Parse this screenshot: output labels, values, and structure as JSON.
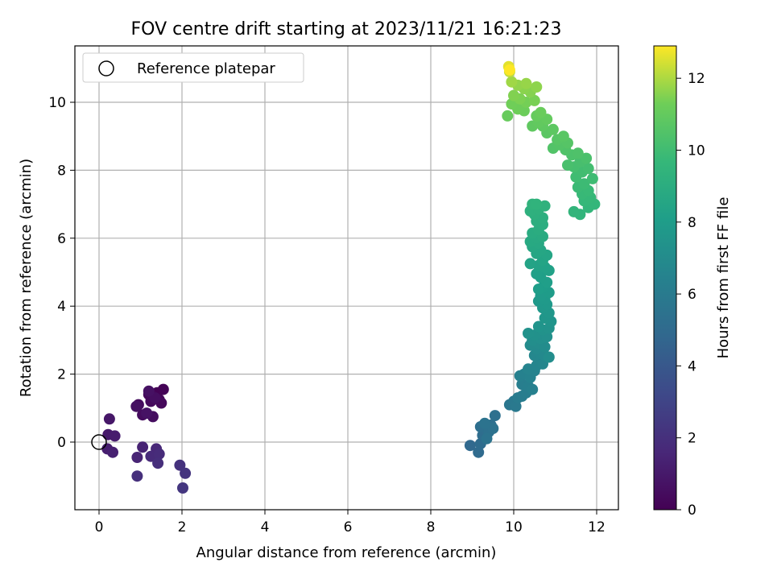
{
  "chart_data": {
    "type": "scatter",
    "title": "FOV centre drift starting at 2023/11/21 16:21:23",
    "xlabel": "Angular distance from reference (arcmin)",
    "ylabel": "Rotation from reference (arcmin)",
    "xlim": [
      -0.6,
      12.5
    ],
    "ylim": [
      -2.0,
      11.7
    ],
    "xticks": [
      "0",
      "2",
      "4",
      "6",
      "8",
      "10",
      "12"
    ],
    "yticks": [
      "0",
      "2",
      "4",
      "6",
      "8",
      "10"
    ],
    "grid": true,
    "legend": {
      "position": "top-left",
      "entries": [
        "Reference platepar"
      ]
    },
    "reference_point": {
      "x": 0,
      "y": 0
    },
    "colorbar": {
      "label": "Hours from first FF file",
      "range": [
        0,
        12.9
      ],
      "ticks": [
        "0",
        "2",
        "4",
        "6",
        "8",
        "10",
        "12"
      ],
      "colormap": "viridis"
    },
    "points": [
      {
        "x": 1.4,
        "y": 1.45,
        "c": 0.05
      },
      {
        "x": 1.55,
        "y": 1.55,
        "c": 0.1
      },
      {
        "x": 1.45,
        "y": 1.25,
        "c": 0.15
      },
      {
        "x": 1.3,
        "y": 1.35,
        "c": 0.2
      },
      {
        "x": 1.2,
        "y": 1.4,
        "c": 0.25
      },
      {
        "x": 1.5,
        "y": 1.15,
        "c": 0.3
      },
      {
        "x": 1.25,
        "y": 1.2,
        "c": 0.35
      },
      {
        "x": 0.95,
        "y": 1.1,
        "c": 0.4
      },
      {
        "x": 1.05,
        "y": 0.8,
        "c": 0.45
      },
      {
        "x": 1.3,
        "y": 0.75,
        "c": 0.5
      },
      {
        "x": 1.35,
        "y": 1.3,
        "c": 0.55
      },
      {
        "x": 0.9,
        "y": 1.05,
        "c": 0.6
      },
      {
        "x": 1.2,
        "y": 1.5,
        "c": 0.65
      },
      {
        "x": 1.15,
        "y": 0.85,
        "c": 0.7
      },
      {
        "x": 0.25,
        "y": 0.68,
        "c": 0.9
      },
      {
        "x": 0.22,
        "y": 0.22,
        "c": 1.0
      },
      {
        "x": 0.38,
        "y": 0.18,
        "c": 1.1
      },
      {
        "x": 0.2,
        "y": -0.2,
        "c": 1.2
      },
      {
        "x": 0.33,
        "y": -0.3,
        "c": 1.3
      },
      {
        "x": 1.05,
        "y": -0.15,
        "c": 1.4
      },
      {
        "x": 0.92,
        "y": -0.45,
        "c": 1.5
      },
      {
        "x": 1.38,
        "y": -0.2,
        "c": 1.6
      },
      {
        "x": 1.25,
        "y": -0.42,
        "c": 1.7
      },
      {
        "x": 1.45,
        "y": -0.35,
        "c": 1.8
      },
      {
        "x": 1.42,
        "y": -0.62,
        "c": 1.9
      },
      {
        "x": 0.92,
        "y": -1.0,
        "c": 2.0
      },
      {
        "x": 1.95,
        "y": -0.68,
        "c": 2.1
      },
      {
        "x": 2.08,
        "y": -0.92,
        "c": 2.2
      },
      {
        "x": 2.02,
        "y": -1.35,
        "c": 2.3
      },
      {
        "x": 8.95,
        "y": -0.1,
        "c": 4.9
      },
      {
        "x": 9.15,
        "y": -0.3,
        "c": 5.0
      },
      {
        "x": 9.2,
        "y": -0.05,
        "c": 5.1
      },
      {
        "x": 9.25,
        "y": 0.2,
        "c": 5.15
      },
      {
        "x": 9.35,
        "y": 0.35,
        "c": 5.2
      },
      {
        "x": 9.2,
        "y": 0.45,
        "c": 5.25
      },
      {
        "x": 9.45,
        "y": 0.5,
        "c": 5.3
      },
      {
        "x": 9.55,
        "y": 0.78,
        "c": 5.35
      },
      {
        "x": 9.4,
        "y": 0.3,
        "c": 5.4
      },
      {
        "x": 9.5,
        "y": 0.4,
        "c": 5.45
      },
      {
        "x": 9.3,
        "y": 0.55,
        "c": 5.5
      },
      {
        "x": 9.35,
        "y": 0.1,
        "c": 5.55
      },
      {
        "x": 9.9,
        "y": 1.1,
        "c": 5.7
      },
      {
        "x": 10.0,
        "y": 1.2,
        "c": 5.8
      },
      {
        "x": 10.05,
        "y": 1.05,
        "c": 5.9
      },
      {
        "x": 10.1,
        "y": 1.3,
        "c": 6.0
      },
      {
        "x": 10.2,
        "y": 1.35,
        "c": 6.1
      },
      {
        "x": 10.3,
        "y": 1.45,
        "c": 6.15
      },
      {
        "x": 10.2,
        "y": 1.7,
        "c": 6.2
      },
      {
        "x": 10.35,
        "y": 1.65,
        "c": 6.25
      },
      {
        "x": 10.45,
        "y": 1.55,
        "c": 6.3
      },
      {
        "x": 10.15,
        "y": 1.95,
        "c": 6.35
      },
      {
        "x": 10.25,
        "y": 2.0,
        "c": 6.4
      },
      {
        "x": 10.4,
        "y": 1.9,
        "c": 6.45
      },
      {
        "x": 10.5,
        "y": 2.1,
        "c": 6.5
      },
      {
        "x": 10.35,
        "y": 2.15,
        "c": 6.55
      },
      {
        "x": 10.55,
        "y": 2.25,
        "c": 6.6
      },
      {
        "x": 10.6,
        "y": 2.4,
        "c": 6.65
      },
      {
        "x": 10.7,
        "y": 2.3,
        "c": 6.7
      },
      {
        "x": 10.5,
        "y": 2.55,
        "c": 6.75
      },
      {
        "x": 10.65,
        "y": 2.6,
        "c": 6.8
      },
      {
        "x": 10.75,
        "y": 2.55,
        "c": 6.85
      },
      {
        "x": 10.55,
        "y": 2.75,
        "c": 6.9
      },
      {
        "x": 10.4,
        "y": 2.85,
        "c": 6.95
      },
      {
        "x": 10.6,
        "y": 2.9,
        "c": 7.0
      },
      {
        "x": 10.75,
        "y": 2.8,
        "c": 7.05
      },
      {
        "x": 10.85,
        "y": 2.5,
        "c": 7.1
      },
      {
        "x": 10.45,
        "y": 3.0,
        "c": 7.15
      },
      {
        "x": 10.65,
        "y": 3.05,
        "c": 7.2
      },
      {
        "x": 10.8,
        "y": 3.1,
        "c": 7.25
      },
      {
        "x": 10.5,
        "y": 3.15,
        "c": 7.3
      },
      {
        "x": 10.35,
        "y": 3.2,
        "c": 7.35
      },
      {
        "x": 10.7,
        "y": 3.3,
        "c": 7.4
      },
      {
        "x": 10.85,
        "y": 3.35,
        "c": 7.45
      },
      {
        "x": 10.6,
        "y": 3.4,
        "c": 7.5
      },
      {
        "x": 10.9,
        "y": 3.55,
        "c": 7.55
      },
      {
        "x": 10.75,
        "y": 3.65,
        "c": 7.6
      },
      {
        "x": 10.85,
        "y": 3.8,
        "c": 7.65
      },
      {
        "x": 10.7,
        "y": 3.95,
        "c": 7.7
      },
      {
        "x": 10.8,
        "y": 4.05,
        "c": 7.75
      },
      {
        "x": 10.6,
        "y": 4.15,
        "c": 7.8
      },
      {
        "x": 10.75,
        "y": 4.2,
        "c": 7.85
      },
      {
        "x": 10.65,
        "y": 4.3,
        "c": 7.9
      },
      {
        "x": 10.85,
        "y": 4.4,
        "c": 7.95
      },
      {
        "x": 10.7,
        "y": 4.55,
        "c": 8.0
      },
      {
        "x": 10.6,
        "y": 4.5,
        "c": 8.05
      },
      {
        "x": 10.8,
        "y": 4.7,
        "c": 8.1
      },
      {
        "x": 10.65,
        "y": 4.85,
        "c": 8.15
      },
      {
        "x": 10.55,
        "y": 4.95,
        "c": 8.2
      },
      {
        "x": 10.85,
        "y": 5.05,
        "c": 8.25
      },
      {
        "x": 10.75,
        "y": 5.15,
        "c": 8.3
      },
      {
        "x": 10.6,
        "y": 5.2,
        "c": 8.35
      },
      {
        "x": 10.4,
        "y": 5.25,
        "c": 8.4
      },
      {
        "x": 10.7,
        "y": 5.35,
        "c": 8.45
      },
      {
        "x": 10.8,
        "y": 5.5,
        "c": 8.5
      },
      {
        "x": 10.55,
        "y": 5.55,
        "c": 8.55
      },
      {
        "x": 10.65,
        "y": 5.65,
        "c": 8.6
      },
      {
        "x": 10.45,
        "y": 5.75,
        "c": 8.65
      },
      {
        "x": 10.6,
        "y": 5.85,
        "c": 8.7
      },
      {
        "x": 10.4,
        "y": 5.9,
        "c": 8.75
      },
      {
        "x": 10.55,
        "y": 6.0,
        "c": 8.8
      },
      {
        "x": 10.7,
        "y": 6.05,
        "c": 8.85
      },
      {
        "x": 10.45,
        "y": 6.15,
        "c": 8.9
      },
      {
        "x": 10.6,
        "y": 6.25,
        "c": 8.95
      },
      {
        "x": 10.7,
        "y": 6.4,
        "c": 9.0
      },
      {
        "x": 10.55,
        "y": 6.5,
        "c": 9.05
      },
      {
        "x": 10.7,
        "y": 6.6,
        "c": 9.1
      },
      {
        "x": 10.5,
        "y": 6.7,
        "c": 9.15
      },
      {
        "x": 10.4,
        "y": 6.8,
        "c": 9.2
      },
      {
        "x": 10.6,
        "y": 6.85,
        "c": 9.25
      },
      {
        "x": 10.75,
        "y": 6.95,
        "c": 9.3
      },
      {
        "x": 10.45,
        "y": 7.0,
        "c": 9.35
      },
      {
        "x": 10.55,
        "y": 7.0,
        "c": 9.4
      },
      {
        "x": 11.6,
        "y": 6.7,
        "c": 9.45
      },
      {
        "x": 11.45,
        "y": 6.78,
        "c": 9.5
      },
      {
        "x": 11.8,
        "y": 6.9,
        "c": 9.55
      },
      {
        "x": 11.95,
        "y": 7.0,
        "c": 9.6
      },
      {
        "x": 11.7,
        "y": 7.1,
        "c": 9.65
      },
      {
        "x": 11.85,
        "y": 7.2,
        "c": 9.7
      },
      {
        "x": 11.65,
        "y": 7.3,
        "c": 9.75
      },
      {
        "x": 11.8,
        "y": 7.4,
        "c": 9.8
      },
      {
        "x": 11.55,
        "y": 7.5,
        "c": 9.85
      },
      {
        "x": 11.7,
        "y": 7.6,
        "c": 9.9
      },
      {
        "x": 11.9,
        "y": 7.75,
        "c": 9.95
      },
      {
        "x": 11.5,
        "y": 7.8,
        "c": 10.0
      },
      {
        "x": 11.65,
        "y": 7.95,
        "c": 10.05
      },
      {
        "x": 11.8,
        "y": 8.05,
        "c": 10.1
      },
      {
        "x": 11.45,
        "y": 8.1,
        "c": 10.15
      },
      {
        "x": 11.6,
        "y": 8.25,
        "c": 10.2
      },
      {
        "x": 11.3,
        "y": 8.15,
        "c": 10.25
      },
      {
        "x": 11.75,
        "y": 8.35,
        "c": 10.3
      },
      {
        "x": 11.4,
        "y": 8.45,
        "c": 10.35
      },
      {
        "x": 11.55,
        "y": 8.5,
        "c": 10.4
      },
      {
        "x": 11.25,
        "y": 8.6,
        "c": 10.45
      },
      {
        "x": 10.95,
        "y": 8.65,
        "c": 10.5
      },
      {
        "x": 11.1,
        "y": 8.75,
        "c": 10.55
      },
      {
        "x": 11.3,
        "y": 8.8,
        "c": 10.6
      },
      {
        "x": 11.05,
        "y": 8.9,
        "c": 10.65
      },
      {
        "x": 11.2,
        "y": 9.0,
        "c": 10.7
      },
      {
        "x": 10.8,
        "y": 9.1,
        "c": 10.75
      },
      {
        "x": 10.95,
        "y": 9.2,
        "c": 10.8
      },
      {
        "x": 10.7,
        "y": 9.3,
        "c": 10.85
      },
      {
        "x": 10.45,
        "y": 9.3,
        "c": 10.9
      },
      {
        "x": 10.6,
        "y": 9.4,
        "c": 10.95
      },
      {
        "x": 10.8,
        "y": 9.5,
        "c": 11.0
      },
      {
        "x": 10.55,
        "y": 9.6,
        "c": 11.05
      },
      {
        "x": 9.85,
        "y": 9.6,
        "c": 11.1
      },
      {
        "x": 10.65,
        "y": 9.7,
        "c": 11.15
      },
      {
        "x": 10.25,
        "y": 9.75,
        "c": 11.2
      },
      {
        "x": 10.1,
        "y": 9.8,
        "c": 11.25
      },
      {
        "x": 9.95,
        "y": 9.95,
        "c": 11.3
      },
      {
        "x": 10.3,
        "y": 10.0,
        "c": 11.35
      },
      {
        "x": 10.5,
        "y": 10.05,
        "c": 11.4
      },
      {
        "x": 10.15,
        "y": 10.1,
        "c": 11.45
      },
      {
        "x": 10.0,
        "y": 10.2,
        "c": 11.5
      },
      {
        "x": 10.4,
        "y": 10.3,
        "c": 11.55
      },
      {
        "x": 10.25,
        "y": 10.4,
        "c": 11.6
      },
      {
        "x": 10.55,
        "y": 10.45,
        "c": 11.65
      },
      {
        "x": 10.1,
        "y": 10.5,
        "c": 11.7
      },
      {
        "x": 10.3,
        "y": 10.55,
        "c": 11.75
      },
      {
        "x": 9.95,
        "y": 10.6,
        "c": 11.85
      },
      {
        "x": 9.9,
        "y": 10.9,
        "c": 12.2
      },
      {
        "x": 9.88,
        "y": 11.05,
        "c": 12.6
      },
      {
        "x": 9.9,
        "y": 10.95,
        "c": 12.9
      }
    ]
  }
}
